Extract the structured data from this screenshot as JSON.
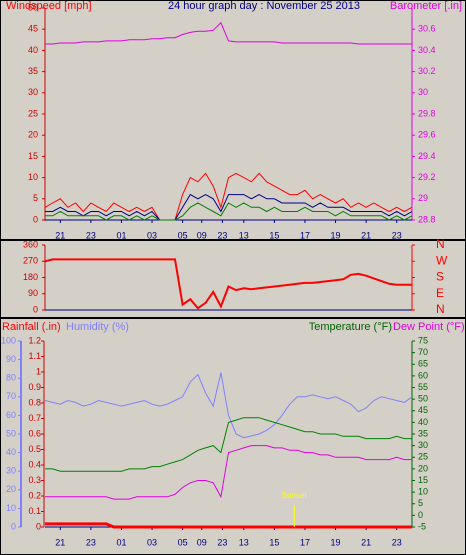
{
  "chart_data": [
    {
      "type": "line",
      "title": "24 hour graph day : November 25 2013",
      "ylabel": "Windspeed [mph]",
      "y2label": "Barometer [.in]",
      "x": [
        0,
        0.5,
        1,
        1.5,
        2,
        2.5,
        3,
        3.5,
        4,
        4.5,
        5,
        5.5,
        6,
        6.5,
        7,
        7.5,
        8,
        8.5,
        9,
        9.5,
        10,
        10.5,
        11,
        11.5,
        12,
        12.5,
        13,
        13.5,
        14,
        14.5,
        15,
        15.5,
        16,
        16.5,
        17,
        17.5,
        18,
        18.5,
        19,
        19.5,
        20,
        20.5,
        21,
        21.5,
        22,
        22.5,
        23,
        23.5,
        24
      ],
      "xlim": [
        0,
        24
      ],
      "xticks": [
        {
          "value": 1,
          "label": "21"
        },
        {
          "value": 3,
          "label": "23"
        },
        {
          "value": 5,
          "label": "01"
        },
        {
          "value": 7,
          "label": "03"
        },
        {
          "value": 9,
          "label": "05"
        },
        {
          "value": 10.25,
          "label": "09"
        },
        {
          "value": 11.6,
          "label": "23"
        },
        13,
        15,
        17,
        19,
        {
          "value": 21,
          "label": "21"
        },
        {
          "value": 23,
          "label": "23"
        }
      ],
      "ylim": [
        0,
        50
      ],
      "yticks": [
        0,
        5,
        10,
        15,
        20,
        25,
        30,
        35,
        40,
        45,
        50
      ],
      "y2lim": [
        28.8,
        30.8
      ],
      "y2ticks": [
        28.8,
        29,
        29.2,
        29.4,
        29.6,
        29.8,
        30,
        30.2,
        30.4,
        30.6
      ],
      "series": [
        {
          "color": "#e000e0",
          "axis": "y2",
          "values": [
            30.46,
            30.46,
            30.47,
            30.47,
            30.47,
            30.48,
            30.48,
            30.48,
            30.49,
            30.49,
            30.49,
            30.5,
            30.5,
            30.5,
            30.51,
            30.51,
            30.52,
            30.52,
            30.55,
            30.57,
            30.58,
            30.58,
            30.59,
            30.66,
            30.49,
            30.48,
            30.48,
            30.48,
            30.48,
            30.48,
            30.48,
            30.47,
            30.47,
            30.47,
            30.47,
            30.47,
            30.47,
            30.47,
            30.47,
            30.47,
            30.47,
            30.46,
            30.46,
            30.46,
            30.46,
            30.46,
            30.46,
            30.46,
            30.46
          ]
        },
        {
          "color": "#ff0000",
          "values": [
            3,
            4,
            5,
            3,
            4,
            2,
            4,
            3,
            2,
            4,
            3,
            2,
            3,
            2,
            3,
            0,
            0,
            0,
            6,
            10,
            9,
            11,
            8,
            3,
            10,
            11,
            10,
            9,
            11,
            9,
            8,
            7,
            6,
            6,
            7,
            5,
            6,
            5,
            4,
            5,
            3,
            4,
            3,
            4,
            3,
            2,
            3,
            2,
            3
          ]
        },
        {
          "color": "#000080",
          "values": [
            2,
            2,
            3,
            2,
            2,
            1,
            2,
            2,
            1,
            2,
            2,
            1,
            2,
            1,
            2,
            0,
            0,
            0,
            3,
            6,
            5,
            6,
            5,
            2,
            6,
            6,
            6,
            5,
            6,
            5,
            5,
            4,
            4,
            4,
            4,
            3,
            4,
            3,
            3,
            3,
            2,
            2,
            2,
            2,
            2,
            1,
            2,
            1,
            2
          ]
        },
        {
          "color": "#008000",
          "values": [
            1,
            1,
            2,
            1,
            1,
            1,
            1,
            1,
            0,
            1,
            1,
            0,
            1,
            0,
            1,
            0,
            0,
            0,
            1,
            3,
            4,
            3,
            2,
            1,
            4,
            3,
            4,
            3,
            3,
            2,
            3,
            2,
            2,
            2,
            3,
            2,
            2,
            2,
            1,
            2,
            1,
            1,
            1,
            1,
            1,
            0,
            1,
            0,
            1
          ]
        }
      ]
    },
    {
      "type": "line",
      "x": [
        0,
        0.5,
        1,
        1.5,
        2,
        2.5,
        3,
        3.5,
        4,
        4.5,
        5,
        5.5,
        6,
        6.5,
        7,
        7.5,
        8,
        8.5,
        9,
        9.5,
        10,
        10.5,
        11,
        11.5,
        12,
        12.5,
        13,
        13.5,
        14,
        14.5,
        15,
        15.5,
        16,
        16.5,
        17,
        17.5,
        18,
        18.5,
        19,
        19.5,
        20,
        20.5,
        21,
        21.5,
        22,
        22.5,
        23,
        23.5,
        24
      ],
      "xlim": [
        0,
        24
      ],
      "ylim": [
        0,
        360
      ],
      "yticks": [
        0,
        90,
        180,
        270,
        360
      ],
      "y2lim": [
        0,
        360
      ],
      "y2ticks": [
        {
          "value": 0,
          "label": "N"
        },
        {
          "value": 90,
          "label": "E"
        },
        {
          "value": 180,
          "label": "S"
        },
        {
          "value": 270,
          "label": "W"
        },
        {
          "value": 360,
          "label": "N"
        }
      ],
      "series": [
        {
          "color": "#ff0000",
          "values": [
            270,
            280,
            280,
            280,
            280,
            280,
            280,
            280,
            280,
            280,
            280,
            280,
            280,
            280,
            280,
            280,
            280,
            280,
            30,
            60,
            10,
            40,
            100,
            20,
            130,
            110,
            120,
            115,
            120,
            125,
            130,
            135,
            140,
            145,
            150,
            150,
            155,
            160,
            165,
            170,
            195,
            200,
            190,
            175,
            160,
            145,
            140,
            140,
            140
          ]
        }
      ]
    },
    {
      "type": "line",
      "x": [
        0,
        0.5,
        1,
        1.5,
        2,
        2.5,
        3,
        3.5,
        4,
        4.5,
        5,
        5.5,
        6,
        6.5,
        7,
        7.5,
        8,
        8.5,
        9,
        9.5,
        10,
        10.5,
        11,
        11.5,
        12,
        12.5,
        13,
        13.5,
        14,
        14.5,
        15,
        15.5,
        16,
        16.5,
        17,
        17.5,
        18,
        18.5,
        19,
        19.5,
        20,
        20.5,
        21,
        21.5,
        22,
        22.5,
        23,
        23.5,
        24
      ],
      "xlim": [
        0,
        24
      ],
      "xticks": [
        {
          "value": 1,
          "label": "21"
        },
        {
          "value": 3,
          "label": "23"
        },
        {
          "value": 5,
          "label": "01"
        },
        {
          "value": 7,
          "label": "03"
        },
        {
          "value": 9,
          "label": "05"
        },
        {
          "value": 10.25,
          "label": "09"
        },
        {
          "value": 11.6,
          "label": "23"
        },
        13,
        15,
        17,
        19,
        {
          "value": 21,
          "label": "21"
        },
        {
          "value": 23,
          "label": "23"
        }
      ],
      "ylim": [
        0,
        100
      ],
      "yticks": [
        0,
        10,
        20,
        30,
        40,
        50,
        60,
        70,
        80,
        90,
        100
      ],
      "y2lim": [
        -5,
        75
      ],
      "y2ticks": [
        -5,
        0,
        5,
        10,
        15,
        20,
        25,
        30,
        35,
        40,
        45,
        50,
        55,
        60,
        65,
        70,
        75
      ],
      "y3lim": [
        0,
        1.2
      ],
      "y3ticks": [
        0,
        0.1,
        0.2,
        0.3,
        0.4,
        0.5,
        0.6,
        0.7,
        0.8,
        0.9,
        1,
        1.1,
        1.2
      ],
      "annotations": [
        {
          "text": "Sunset",
          "x": 16.3
        }
      ],
      "series": [
        {
          "name": "Rainfall (.in)",
          "color": "#ff0000",
          "axis": "y3",
          "values": [
            0.02,
            0.02,
            0.02,
            0.02,
            0.02,
            0.02,
            0.02,
            0.02,
            0.02,
            0,
            0,
            0,
            0,
            0,
            0,
            0,
            0,
            0,
            0,
            0,
            0,
            0,
            0,
            0,
            0,
            0,
            0,
            0,
            0,
            0,
            0,
            0,
            0,
            0,
            0,
            0,
            0,
            0,
            0,
            0,
            0,
            0,
            0,
            0,
            0,
            0,
            0,
            0,
            0
          ]
        },
        {
          "name": "Humidity (%)",
          "color": "#8080ff",
          "values": [
            68,
            67,
            66,
            68,
            67,
            65,
            66,
            68,
            67,
            66,
            65,
            66,
            67,
            68,
            66,
            65,
            66,
            68,
            70,
            78,
            82,
            72,
            65,
            83,
            60,
            50,
            48,
            49,
            50,
            52,
            55,
            60,
            66,
            70,
            70,
            71,
            70,
            69,
            70,
            68,
            66,
            62,
            64,
            68,
            70,
            69,
            68,
            67,
            70
          ]
        },
        {
          "name": "Temperature (°F)",
          "color": "#008000",
          "axis": "y2",
          "values": [
            20,
            20,
            19,
            19,
            19,
            19,
            19,
            19,
            19,
            19,
            19,
            20,
            20,
            20,
            21,
            21,
            22,
            23,
            24,
            26,
            28,
            29,
            30,
            27,
            40,
            41,
            42,
            42,
            42,
            41,
            40,
            39,
            38,
            37,
            36,
            36,
            35,
            35,
            35,
            34,
            34,
            34,
            33,
            33,
            33,
            33,
            34,
            33,
            33
          ]
        },
        {
          "name": "Dew Point (°F)",
          "color": "#e000e0",
          "axis": "y2",
          "values": [
            8,
            8,
            8,
            8,
            8,
            8,
            8,
            8,
            8,
            7,
            7,
            7,
            8,
            8,
            8,
            8,
            8,
            9,
            12,
            14,
            15,
            15,
            14,
            8,
            27,
            28,
            29,
            30,
            30,
            30,
            29,
            29,
            28,
            28,
            27,
            27,
            26,
            26,
            25,
            25,
            25,
            25,
            24,
            24,
            24,
            24,
            25,
            24,
            24
          ]
        }
      ]
    }
  ]
}
